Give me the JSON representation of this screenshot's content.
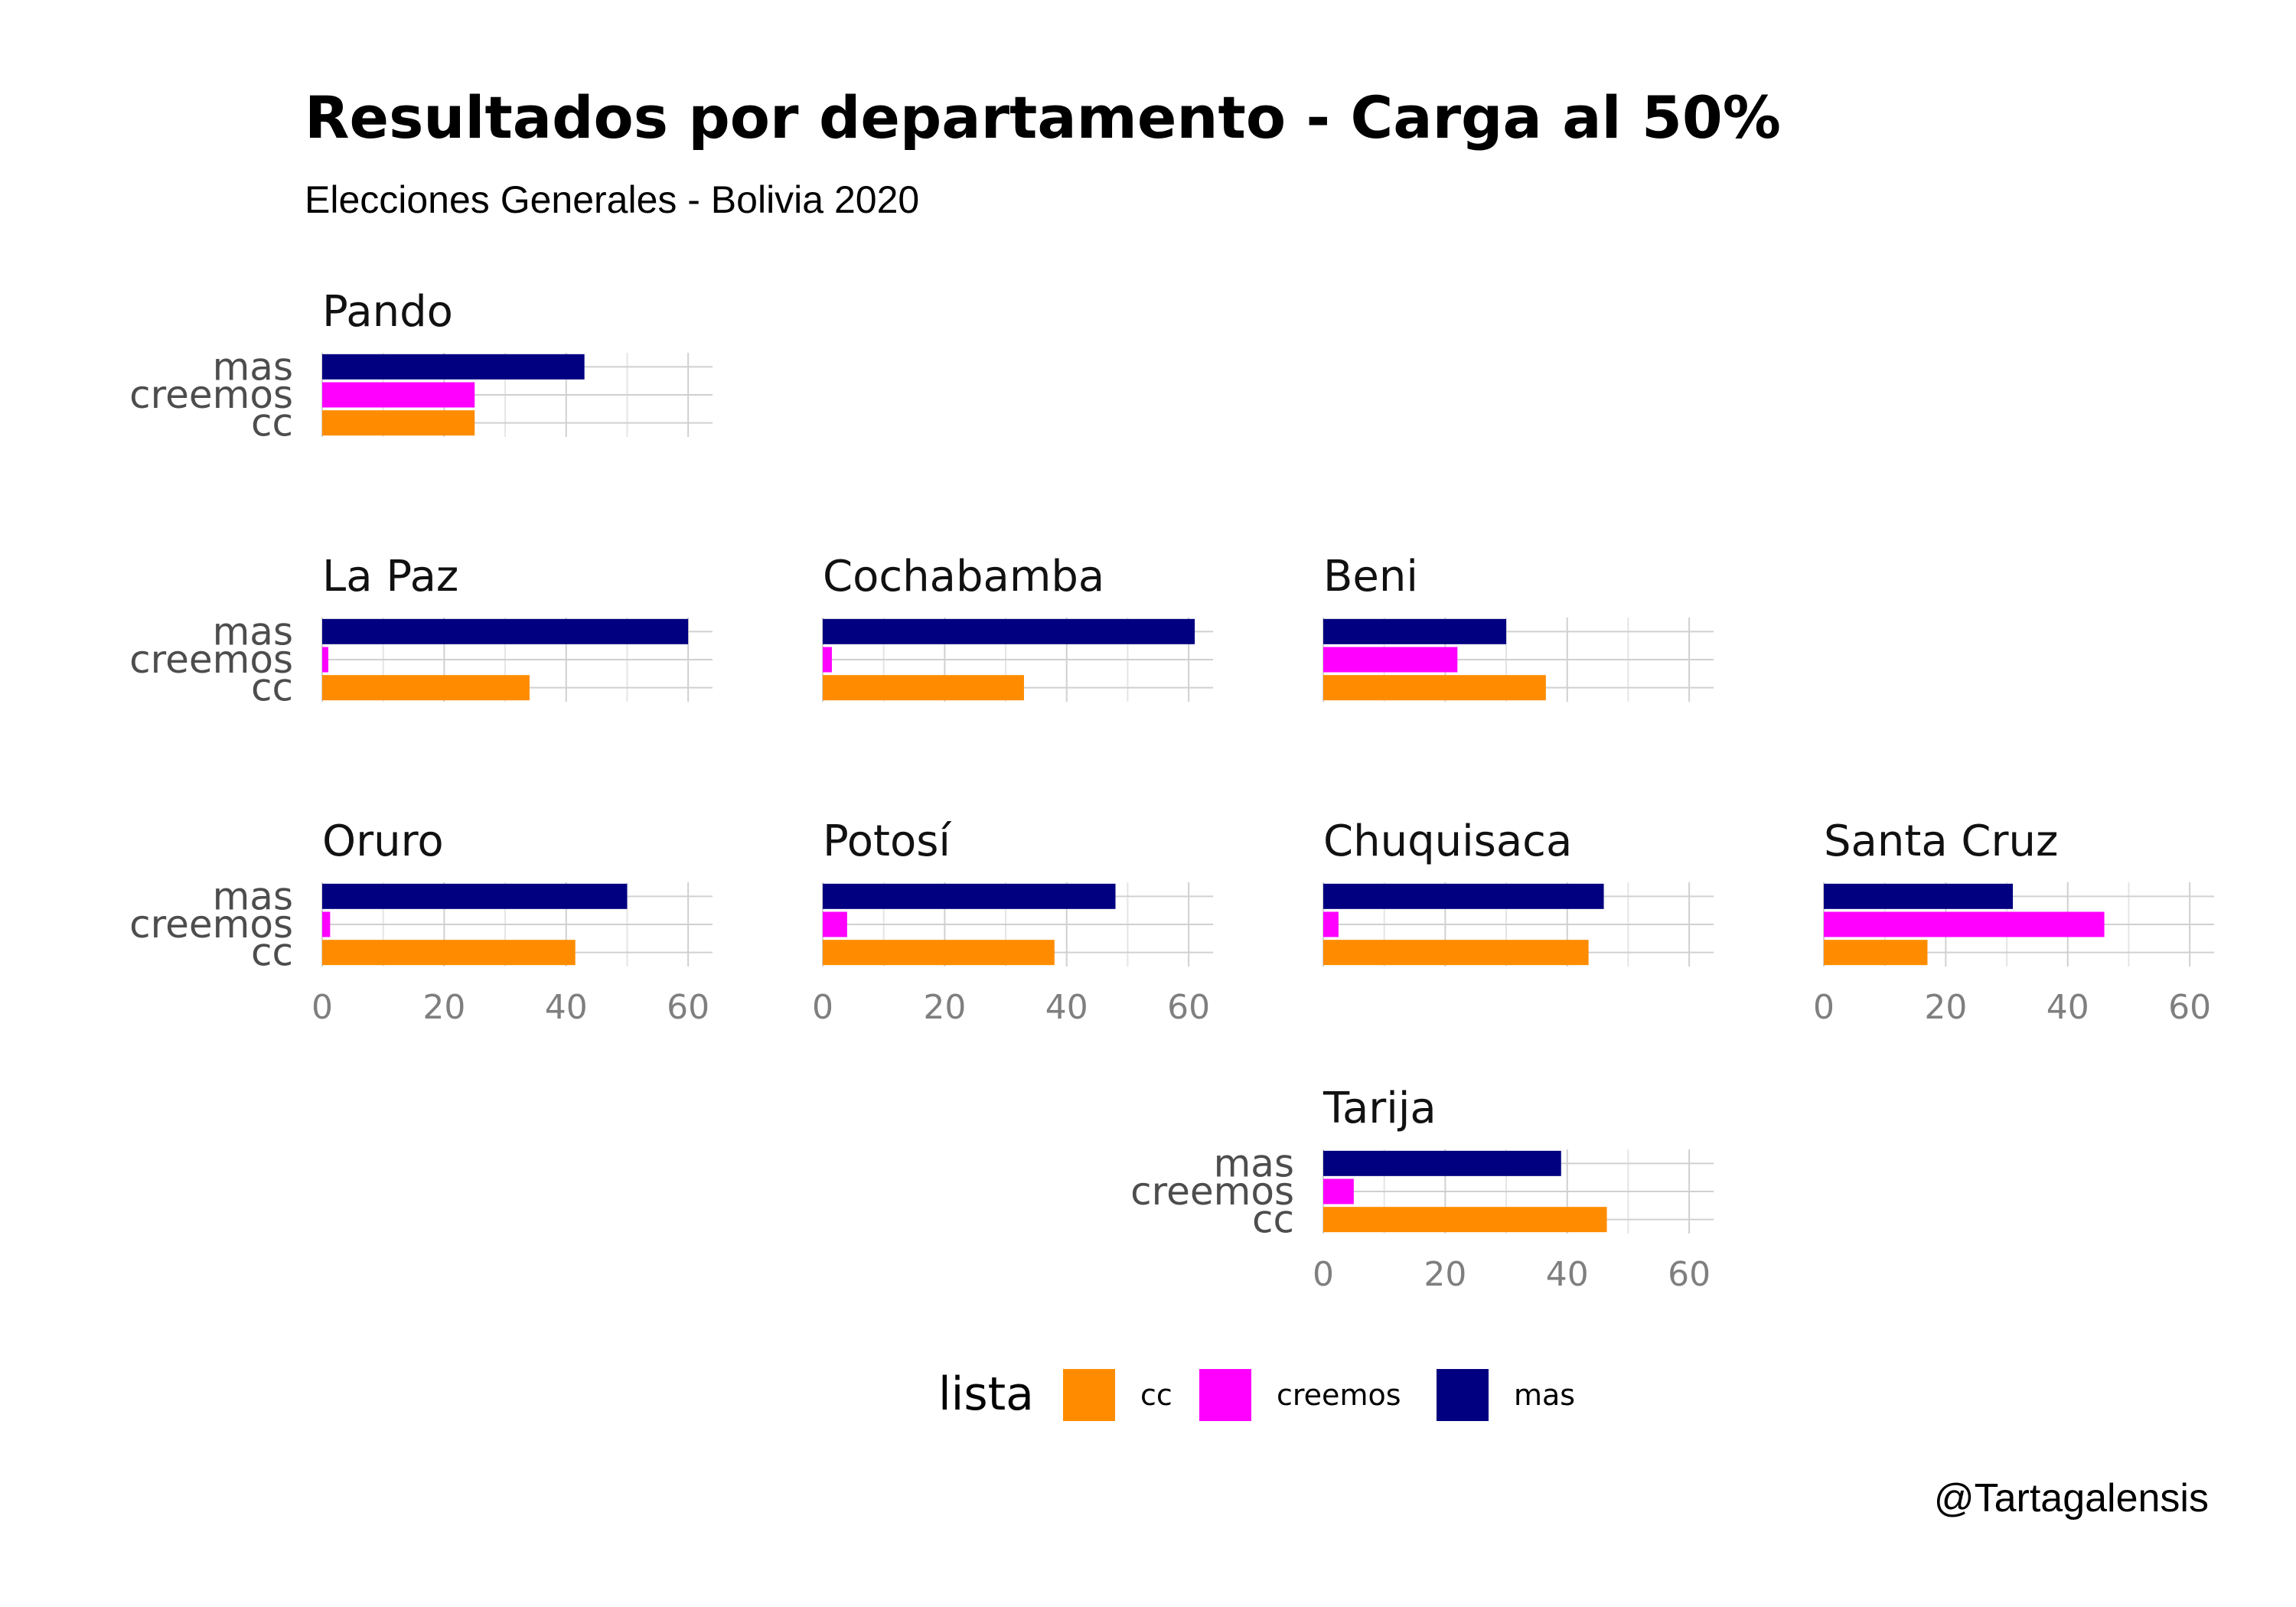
{
  "chart_data": {
    "type": "bar",
    "title": "Resultados por departamento - Carga al 50%",
    "subtitle": "Elecciones Generales - Bolivia 2020",
    "caption": "@Tartagalensis",
    "categories": [
      "mas",
      "creemos",
      "cc"
    ],
    "xlim": [
      0,
      64
    ],
    "xticks": [
      "0",
      "20",
      "40",
      "60"
    ],
    "grid": true,
    "legend": {
      "title": "lista",
      "position": "bottom",
      "items": [
        {
          "label": "cc",
          "color": "#FF8C00"
        },
        {
          "label": "creemos",
          "color": "#FF00FF"
        },
        {
          "label": "mas",
          "color": "#000080"
        }
      ]
    },
    "colors": {
      "mas": "#000080",
      "creemos": "#FF00FF",
      "cc": "#FF8C00"
    },
    "facets": [
      {
        "name": "Pando",
        "values": {
          "mas": 43,
          "creemos": 25,
          "cc": 25
        }
      },
      {
        "name": "La Paz",
        "values": {
          "mas": 60,
          "creemos": 1,
          "cc": 34
        }
      },
      {
        "name": "Cochabamba",
        "values": {
          "mas": 61,
          "creemos": 1.5,
          "cc": 33
        }
      },
      {
        "name": "Beni",
        "values": {
          "mas": 30,
          "creemos": 22,
          "cc": 36.5
        }
      },
      {
        "name": "Oruro",
        "values": {
          "mas": 50,
          "creemos": 1.3,
          "cc": 41.5
        }
      },
      {
        "name": "Potosí",
        "values": {
          "mas": 48,
          "creemos": 4,
          "cc": 38
        }
      },
      {
        "name": "Chuquisaca",
        "values": {
          "mas": 46,
          "creemos": 2.5,
          "cc": 43.5
        }
      },
      {
        "name": "Santa Cruz",
        "values": {
          "mas": 31,
          "creemos": 46,
          "cc": 17
        }
      },
      {
        "name": "Tarija",
        "values": {
          "mas": 39,
          "creemos": 5,
          "cc": 46.5
        }
      }
    ]
  }
}
